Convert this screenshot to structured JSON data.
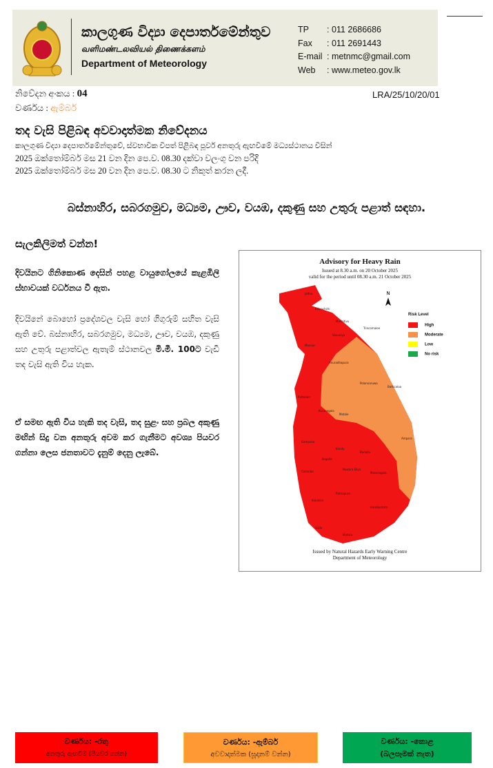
{
  "header": {
    "title_si": "කාලගුණ විද්‍යා දෙපාර්තමේන්තුව",
    "title_ta": "வளிமண்டலவியல் திணைக்களம்",
    "title_en": "Department of Meteorology",
    "contacts": [
      {
        "k": "TP",
        "v": ": 011 2686686"
      },
      {
        "k": "Fax",
        "v": ": 011 2691443"
      },
      {
        "k": "E-mail",
        "v": ": metnmc@gmail.com"
      },
      {
        "k": "Web",
        "v": ": www.meteo.gov.lk"
      }
    ]
  },
  "meta": {
    "number_label": "නිවේදන අංකය :",
    "number": "04",
    "ref": "LRA/25/10/20/01",
    "color_label": "වර්ණය :",
    "color_value": "ඇම්බර්"
  },
  "notice": {
    "title": "තද වැසි පිළිබඳ අවවාදාත්මක නිවේදනය",
    "line1": "කාලගුණ විද්‍යා දෙපාර්තමේන්තුවේ, ස්වභාවික විපත් පිළිබඳ  පූර්ව අනතුරු ඇඟවීමේ මධ්‍යස්ථානය විසින්",
    "line2": "2025 ඔක්තෝම්බර් මස 21 වන දින පෙ.ව. 08.30 දක්වා වලංගු වන පරිදි",
    "line3": "2025 ඔක්තෝම්බර් මස 20 වන දින පෙ.ව. 08.30 ට නිකුත් කරන ලදී."
  },
  "regions": "බස්නාහිර, සබරගමුව, මධ්‍යම, ඌව, වයඹ, දකුණු සහ උතුරු පළාත් සඳහා.",
  "body": {
    "attention": "සැලකිලිමත් වන්න!",
    "p1": "දිවයිනට ගිනිකොණ දෙසින් පහළ වායුගෝලයේ කැළඹිලි ස්භාවයක් වර්ධනය වී ඇත.",
    "p2a": "දිවයිනේ බොහෝ ප්‍රදේශවල වැසි හෝ ගිගුරුම් සහිත වැසි ඇති වේ. බස්නාහිර, සබරගමුව, මධ්‍යම, ඌව, වයඹ, දකුණු සහ උතුරු පළාත්වල ඇතැම් ස්ථානවල ",
    "p2b": "මි.මී. 100ට",
    "p2c": " වැඩි තද වැසි ඇති විය හැක.",
    "p3": "ඒ සමඟ ඇති විය හැකි තද වැසි, තද සුළං සහ ප්‍රබල අකුණු මඟින් සිදු වන අනතුරු අවම කර ගැනීමට අවශ්‍ය පියවර ගන්නා ලෙස ජනතාවට දැනුම් දෙනු ලැබේ."
  },
  "map": {
    "title": "Advisory for Heavy Rain",
    "issued": "Issued at 8.30 a.m. on 20 October 2025",
    "valid": "valid for the period until 08.30 a.m. 21  October 2025",
    "north": "N",
    "legend_title": "Risk Level",
    "legend": [
      {
        "label": "High",
        "color": "#f01414"
      },
      {
        "label": "Moderate",
        "color": "#f4914a"
      },
      {
        "label": "Low",
        "color": "#ffff00"
      },
      {
        "label": "No risk",
        "color": "#1aa84a"
      }
    ],
    "footer1": "Issued by Natural Hazards Early Warning Centre",
    "footer2": "Department of Meteorology",
    "districts": [
      "Jaffna",
      "Kilinochchi",
      "Mullaitivu",
      "Mannar",
      "Vavuniya",
      "Trincomalee",
      "Anuradhapura",
      "Puttalam",
      "Kurunegala",
      "Matale",
      "Polonnaruwa",
      "Batticaloa",
      "Ampara",
      "Gampaha",
      "Kandy",
      "Badulla",
      "Colombo",
      "Kegalle",
      "Nuwara Eliya",
      "Ratnapura",
      "Moneragala",
      "Kalutara",
      "Galle",
      "Matara",
      "Hambantota"
    ]
  },
  "color_keys": [
    {
      "title": "වර්ණය: -රතු",
      "desc": "අනතුරු ඇඟවීම (පියවර ගන්න)",
      "color": "#ff0000"
    },
    {
      "title": "වර්ණය: -ඇම්බර්",
      "desc": "අවවාදාත්මක  (සූදානම් වන්න)",
      "color": "#ff9933"
    },
    {
      "title": "වර්ණය: -කොළ",
      "desc": "(බලපෑමක් නැත)",
      "color": "#00a651"
    }
  ]
}
